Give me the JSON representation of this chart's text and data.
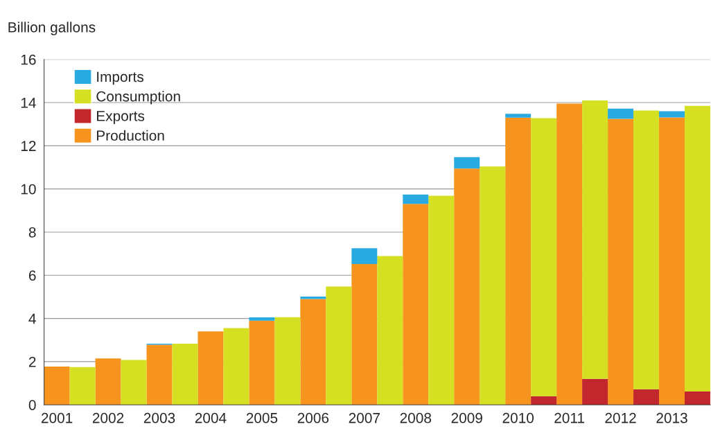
{
  "chart_data": {
    "type": "bar",
    "stacked": true,
    "ylabel": "Billion gallons",
    "categories": [
      "2001",
      null,
      "2002",
      null,
      "2003",
      null,
      "2004",
      null,
      "2005",
      null,
      "2006",
      null,
      "2007",
      null,
      "2008",
      null,
      "2009",
      null,
      "2010",
      null,
      "2011",
      null,
      "2012",
      null,
      "2013",
      null
    ],
    "ylim": [
      0,
      16
    ],
    "yticks": [
      0,
      2,
      4,
      6,
      8,
      10,
      12,
      14,
      16
    ],
    "grid": "y",
    "legend": "top left",
    "series": [
      {
        "name": "Production",
        "color": "#f7941d",
        "values": [
          1.77,
          null,
          2.15,
          null,
          2.78,
          null,
          3.4,
          null,
          3.9,
          null,
          4.9,
          null,
          6.52,
          null,
          9.31,
          null,
          10.94,
          null,
          13.3,
          null,
          13.95,
          null,
          13.25,
          null,
          13.31,
          null
        ]
      },
      {
        "name": "Exports",
        "color": "#c1272d",
        "values": [
          null,
          0,
          null,
          0,
          null,
          0,
          null,
          0,
          null,
          0,
          null,
          0,
          null,
          0,
          null,
          0,
          null,
          0,
          null,
          0.4,
          null,
          1.2,
          null,
          0.72,
          null,
          0.62
        ]
      },
      {
        "name": "Consumption",
        "color": "#d4e021",
        "values": [
          null,
          1.75,
          null,
          2.08,
          null,
          2.83,
          null,
          3.55,
          null,
          4.06,
          null,
          5.48,
          null,
          6.89,
          null,
          9.68,
          null,
          11.04,
          null,
          12.88,
          null,
          12.9,
          null,
          12.91,
          null,
          13.23
        ]
      },
      {
        "name": "Imports",
        "color": "#29abe2",
        "values": [
          0,
          null,
          0,
          null,
          0.05,
          null,
          0,
          null,
          0.15,
          null,
          0.11,
          null,
          0.73,
          null,
          0.43,
          null,
          0.53,
          null,
          0.18,
          null,
          0,
          null,
          0.47,
          null,
          0.29,
          null
        ]
      }
    ]
  }
}
